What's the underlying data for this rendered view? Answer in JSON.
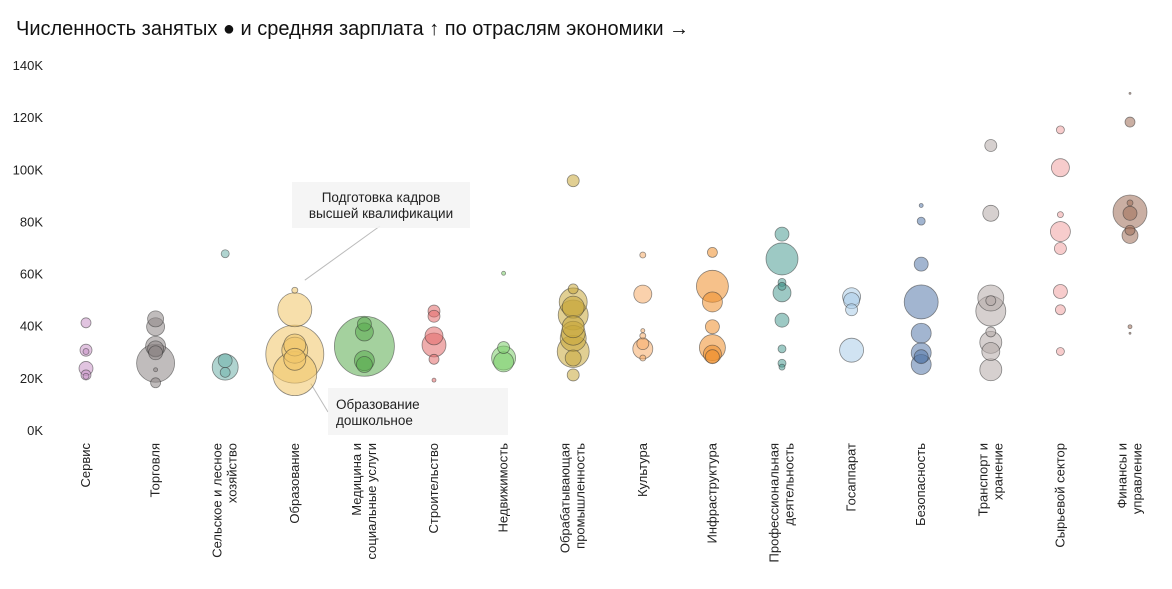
{
  "chart_data": {
    "type": "scatter",
    "title": "Численность занятых ● и средняя зарплата ↑ по отраслям экономики →",
    "xlabel": "",
    "ylabel": "",
    "ylim": [
      0,
      140000
    ],
    "yticks": [
      {
        "value": 0,
        "label": "0K"
      },
      {
        "value": 20000,
        "label": "20K"
      },
      {
        "value": 40000,
        "label": "40K"
      },
      {
        "value": 60000,
        "label": "60K"
      },
      {
        "value": 80000,
        "label": "80K"
      },
      {
        "value": 100000,
        "label": "100K"
      },
      {
        "value": 120000,
        "label": "120K"
      },
      {
        "value": 140000,
        "label": "140K"
      }
    ],
    "grid": false,
    "legend": "none",
    "categories": [
      {
        "label": [
          "Сервис"
        ],
        "color": "#c994c7",
        "points": [
          {
            "y": 41500,
            "s": 5
          },
          {
            "y": 31000,
            "s": 6
          },
          {
            "y": 30500,
            "s": 3
          },
          {
            "y": 24000,
            "s": 7
          },
          {
            "y": 21500,
            "s": 5
          },
          {
            "y": 21000,
            "s": 3
          }
        ]
      },
      {
        "label": [
          "Торговля"
        ],
        "color": "#8c8585",
        "points": [
          {
            "y": 43000,
            "s": 8
          },
          {
            "y": 40000,
            "s": 9
          },
          {
            "y": 32500,
            "s": 10
          },
          {
            "y": 31500,
            "s": 8
          },
          {
            "y": 30000,
            "s": 7
          },
          {
            "y": 26000,
            "s": 19
          },
          {
            "y": 23500,
            "s": 2
          },
          {
            "y": 18500,
            "s": 5
          }
        ]
      },
      {
        "label": [
          "Сельское и лесное",
          "хозяйство"
        ],
        "color": "#6fb1aa",
        "points": [
          {
            "y": 68000,
            "s": 4
          },
          {
            "y": 27000,
            "s": 7
          },
          {
            "y": 24500,
            "s": 13
          },
          {
            "y": 22500,
            "s": 5
          }
        ]
      },
      {
        "label": [
          "Образование"
        ],
        "color": "#f0c566",
        "points": [
          {
            "y": 54000,
            "s": 3
          },
          {
            "y": 46500,
            "s": 17
          },
          {
            "y": 33000,
            "s": 11
          },
          {
            "y": 31000,
            "s": 13
          },
          {
            "y": 29500,
            "s": 29
          },
          {
            "y": 27500,
            "s": 11
          },
          {
            "y": 22000,
            "s": 22
          }
        ]
      },
      {
        "label": [
          "Медицина и",
          "социальные услуги"
        ],
        "color": "#5aab4f",
        "points": [
          {
            "y": 41000,
            "s": 7
          },
          {
            "y": 38000,
            "s": 9
          },
          {
            "y": 32500,
            "s": 30
          },
          {
            "y": 27000,
            "s": 10
          },
          {
            "y": 25500,
            "s": 8
          }
        ]
      },
      {
        "label": [
          "Строительство"
        ],
        "color": "#e26a6a",
        "points": [
          {
            "y": 46000,
            "s": 6
          },
          {
            "y": 44000,
            "s": 6
          },
          {
            "y": 36500,
            "s": 9
          },
          {
            "y": 33000,
            "s": 12
          },
          {
            "y": 27500,
            "s": 5
          },
          {
            "y": 19500,
            "s": 2
          }
        ]
      },
      {
        "label": [
          "Недвижимость"
        ],
        "color": "#7ccd6a",
        "points": [
          {
            "y": 60500,
            "s": 2
          },
          {
            "y": 32000,
            "s": 6
          },
          {
            "y": 28000,
            "s": 12
          },
          {
            "y": 26500,
            "s": 10
          }
        ]
      },
      {
        "label": [
          "Обрабатывающая",
          "промышленность"
        ],
        "color": "#c9a83a",
        "points": [
          {
            "y": 96000,
            "s": 6
          },
          {
            "y": 54500,
            "s": 5
          },
          {
            "y": 49500,
            "s": 14
          },
          {
            "y": 47500,
            "s": 11
          },
          {
            "y": 44500,
            "s": 15
          },
          {
            "y": 40000,
            "s": 11
          },
          {
            "y": 37500,
            "s": 12
          },
          {
            "y": 35500,
            "s": 13
          },
          {
            "y": 30500,
            "s": 16
          },
          {
            "y": 28000,
            "s": 8
          },
          {
            "y": 21500,
            "s": 6
          }
        ]
      },
      {
        "label": [
          "Культура"
        ],
        "color": "#f6ac68",
        "points": [
          {
            "y": 67500,
            "s": 3
          },
          {
            "y": 52500,
            "s": 9
          },
          {
            "y": 38500,
            "s": 2
          },
          {
            "y": 36500,
            "s": 3
          },
          {
            "y": 33500,
            "s": 6
          },
          {
            "y": 31500,
            "s": 10
          },
          {
            "y": 28000,
            "s": 3
          }
        ]
      },
      {
        "label": [
          "Инфраструктура"
        ],
        "color": "#ee8e2a",
        "points": [
          {
            "y": 68500,
            "s": 5
          },
          {
            "y": 55500,
            "s": 16
          },
          {
            "y": 49500,
            "s": 10
          },
          {
            "y": 40000,
            "s": 7
          },
          {
            "y": 32000,
            "s": 13
          },
          {
            "y": 29500,
            "s": 9
          },
          {
            "y": 28500,
            "s": 7
          }
        ]
      },
      {
        "label": [
          "Профессиональная",
          "деятельность"
        ],
        "color": "#4d9c93",
        "points": [
          {
            "y": 75500,
            "s": 7
          },
          {
            "y": 66000,
            "s": 16
          },
          {
            "y": 57000,
            "s": 4
          },
          {
            "y": 55500,
            "s": 4
          },
          {
            "y": 53000,
            "s": 9
          },
          {
            "y": 42500,
            "s": 7
          },
          {
            "y": 31500,
            "s": 4
          },
          {
            "y": 26000,
            "s": 4
          },
          {
            "y": 24500,
            "s": 3
          }
        ]
      },
      {
        "label": [
          "Госаппарат"
        ],
        "color": "#a9cce8",
        "points": [
          {
            "y": 51500,
            "s": 9
          },
          {
            "y": 50000,
            "s": 8
          },
          {
            "y": 46500,
            "s": 6
          },
          {
            "y": 31000,
            "s": 12
          }
        ]
      },
      {
        "label": [
          "Безопасность"
        ],
        "color": "#5678aa",
        "points": [
          {
            "y": 86500,
            "s": 2
          },
          {
            "y": 80500,
            "s": 4
          },
          {
            "y": 64000,
            "s": 7
          },
          {
            "y": 49500,
            "s": 17
          },
          {
            "y": 37500,
            "s": 10
          },
          {
            "y": 30000,
            "s": 10
          },
          {
            "y": 28500,
            "s": 7
          },
          {
            "y": 25500,
            "s": 10
          }
        ]
      },
      {
        "label": [
          "Транспорт и",
          "хранение"
        ],
        "color": "#b5aaa8",
        "points": [
          {
            "y": 109500,
            "s": 6
          },
          {
            "y": 83500,
            "s": 8
          },
          {
            "y": 51000,
            "s": 13
          },
          {
            "y": 50000,
            "s": 5
          },
          {
            "y": 46000,
            "s": 15
          },
          {
            "y": 38000,
            "s": 5
          },
          {
            "y": 34000,
            "s": 11
          },
          {
            "y": 30500,
            "s": 9
          },
          {
            "y": 23500,
            "s": 11
          }
        ]
      },
      {
        "label": [
          "Сырьевой сектор"
        ],
        "color": "#f1a3a3",
        "points": [
          {
            "y": 115500,
            "s": 4
          },
          {
            "y": 101000,
            "s": 9
          },
          {
            "y": 83000,
            "s": 3
          },
          {
            "y": 76500,
            "s": 10
          },
          {
            "y": 70000,
            "s": 6
          },
          {
            "y": 53500,
            "s": 7
          },
          {
            "y": 46500,
            "s": 5
          },
          {
            "y": 30500,
            "s": 4
          }
        ]
      },
      {
        "label": [
          "Финансы и",
          "управление"
        ],
        "color": "#9e6e57",
        "points": [
          {
            "y": 129500,
            "s": 1
          },
          {
            "y": 118500,
            "s": 5
          },
          {
            "y": 87500,
            "s": 3
          },
          {
            "y": 84000,
            "s": 17
          },
          {
            "y": 83500,
            "s": 7
          },
          {
            "y": 77000,
            "s": 5
          },
          {
            "y": 75000,
            "s": 8
          },
          {
            "y": 40000,
            "s": 2
          },
          {
            "y": 37500,
            "s": 1
          }
        ]
      }
    ],
    "annotations": [
      {
        "lines": [
          "Подготовка кадров",
          "высшей квалификации"
        ],
        "category_index": 3,
        "y": 54000
      },
      {
        "lines": [
          "Образование",
          "дошкольное"
        ],
        "category_index": 3,
        "y": 22000
      }
    ]
  }
}
